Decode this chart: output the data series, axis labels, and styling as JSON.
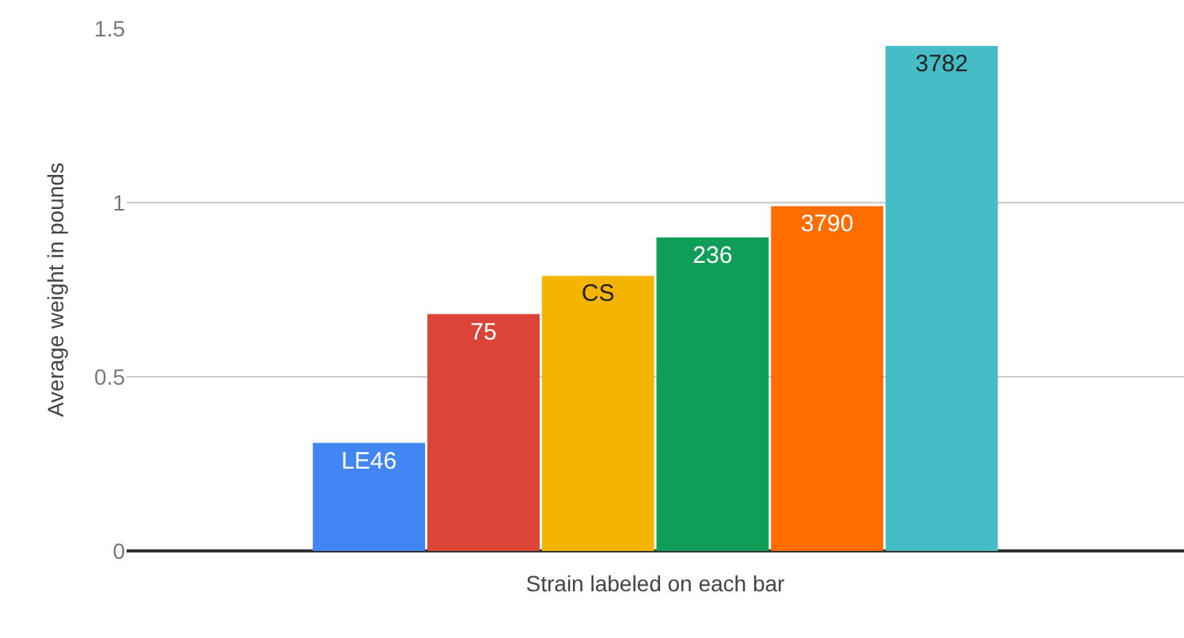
{
  "chart_data": {
    "type": "bar",
    "xlabel": "Strain labeled on each bar",
    "ylabel": "Average weight in pounds",
    "categories": [
      null
    ],
    "series": [
      {
        "name": "LE46",
        "color": "#4285f4",
        "values": [
          0.31
        ]
      },
      {
        "name": "75",
        "color": "#db4437",
        "values": [
          0.68
        ]
      },
      {
        "name": "CS",
        "color": "#f4b400",
        "values": [
          0.79
        ]
      },
      {
        "name": "236",
        "color": "#0f9d58",
        "values": [
          0.9
        ]
      },
      {
        "name": "3790",
        "color": "#ff6d01",
        "values": [
          0.99
        ]
      },
      {
        "name": "3782",
        "color": "#46bdc6",
        "values": [
          1.45
        ]
      }
    ],
    "ylim": [
      0,
      1.5
    ],
    "yticks": [
      0,
      0.5,
      1,
      1.5
    ],
    "grid": "y",
    "legend": false
  }
}
